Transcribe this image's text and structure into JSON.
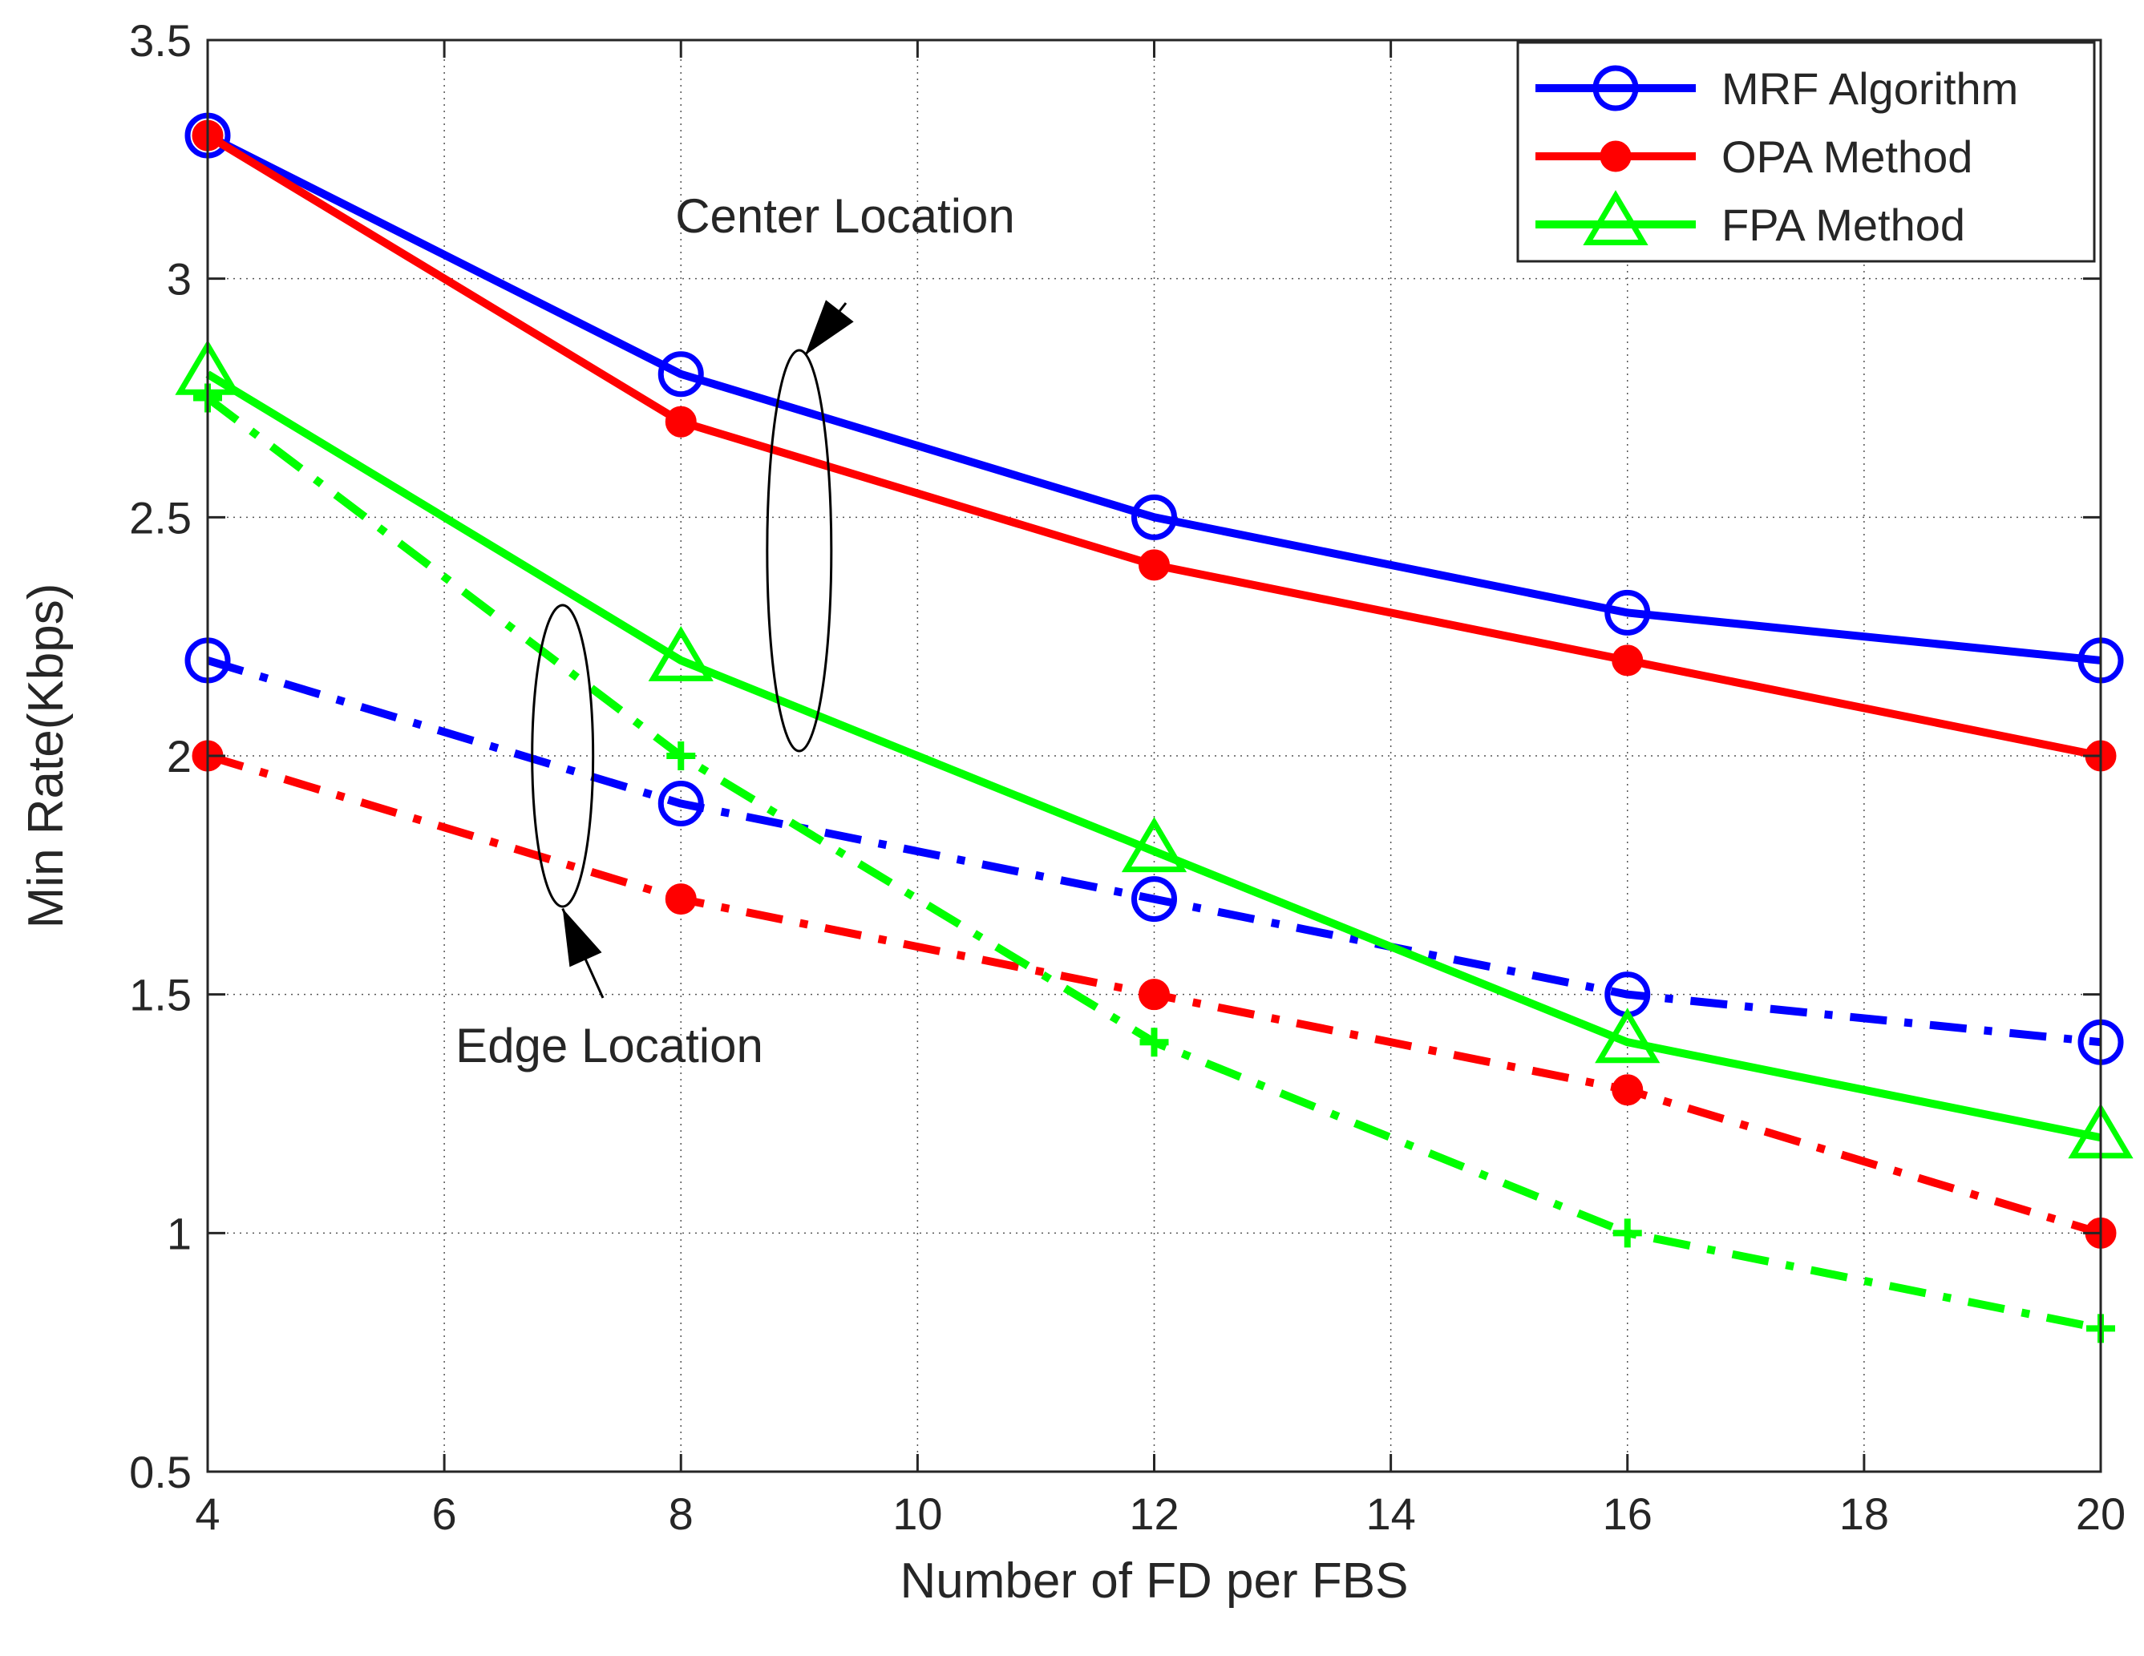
{
  "chart_data": {
    "type": "line",
    "xlabel": "Number of FD per FBS",
    "ylabel": "Min Rate(Kbps)",
    "xlim": [
      4,
      20
    ],
    "ylim": [
      0.5,
      3.5
    ],
    "xticks": [
      4,
      6,
      8,
      10,
      12,
      14,
      16,
      18,
      20
    ],
    "yticks": [
      0.5,
      1,
      1.5,
      2,
      2.5,
      3,
      3.5
    ],
    "xtick_labels": [
      "4",
      "6",
      "8",
      "10",
      "12",
      "14",
      "16",
      "18",
      "20"
    ],
    "ytick_labels": [
      "0.5",
      "1",
      "1.5",
      "2",
      "2.5",
      "3",
      "3.5"
    ],
    "grid": true,
    "legend_position": "top-right",
    "legend": [
      {
        "name": "MRF Algorithm",
        "color": "#0000ff",
        "marker": "circle"
      },
      {
        "name": "OPA Method",
        "color": "#ff0000",
        "marker": "dot"
      },
      {
        "name": "FPA Method",
        "color": "#00ff00",
        "marker": "triangle"
      }
    ],
    "x": [
      4,
      8,
      12,
      16,
      20
    ],
    "series": [
      {
        "name": "MRF Algorithm (Center Location)",
        "color": "#0000ff",
        "style": "solid",
        "marker": "circle",
        "values": [
          3.3,
          2.8,
          2.5,
          2.3,
          2.2
        ]
      },
      {
        "name": "OPA Method (Center Location)",
        "color": "#ff0000",
        "style": "solid",
        "marker": "dot",
        "values": [
          3.3,
          2.7,
          2.4,
          2.2,
          2.0
        ]
      },
      {
        "name": "FPA Method (Center Location)",
        "color": "#00ff00",
        "style": "solid",
        "marker": "triangle",
        "values": [
          2.8,
          2.2,
          1.8,
          1.4,
          1.2
        ]
      },
      {
        "name": "MRF Algorithm (Edge Location)",
        "color": "#0000ff",
        "style": "dashdot",
        "marker": "circle",
        "values": [
          2.2,
          1.9,
          1.7,
          1.5,
          1.4
        ]
      },
      {
        "name": "OPA Method (Edge Location)",
        "color": "#ff0000",
        "style": "dashdot",
        "marker": "dot",
        "values": [
          2.0,
          1.7,
          1.5,
          1.3,
          1.0
        ]
      },
      {
        "name": "FPA Method (Edge Location)",
        "color": "#00ff00",
        "style": "dashdot",
        "marker": "plus",
        "values": [
          2.75,
          2.0,
          1.4,
          1.0,
          0.8
        ]
      }
    ],
    "annotations": [
      {
        "text": "Center Location",
        "ellipse_center": [
          9.0,
          2.43
        ],
        "arrow_tip": [
          9.05,
          2.84
        ]
      },
      {
        "text": "Edge Location",
        "ellipse_center": [
          7.0,
          2.0
        ],
        "arrow_tip": [
          7.0,
          1.68
        ]
      }
    ]
  }
}
